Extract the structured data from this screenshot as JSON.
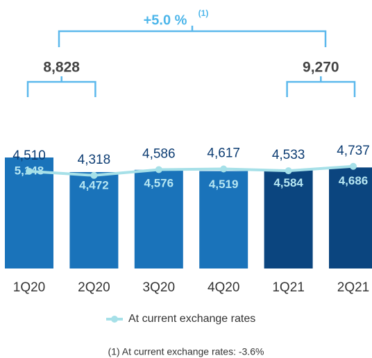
{
  "chart_data": {
    "type": "bar",
    "categories": [
      "1Q20",
      "2Q20",
      "3Q20",
      "4Q20",
      "1Q21",
      "2Q21"
    ],
    "series": [
      {
        "values": [
          5148,
          4472,
          4576,
          4519,
          4584,
          4686
        ],
        "value_labels": [
          "5,148",
          "4,472",
          "4,576",
          "4,519",
          "4,584",
          "4,686"
        ],
        "colors": [
          "#1a73ba",
          "#1a73ba",
          "#1a73ba",
          "#1a73ba",
          "#0b457f",
          "#0b457f"
        ]
      },
      {
        "name": "At current exchange rates",
        "type": "line",
        "color": "#a6e0e8",
        "values": [
          4510,
          4318,
          4586,
          4617,
          4533,
          4737
        ],
        "value_labels": [
          "4,510",
          "4,318",
          "4,586",
          "4,617",
          "4,533",
          "4,737"
        ]
      }
    ],
    "annotations": {
      "growth": "+5.0 %",
      "growth_note": "(1)",
      "brackets": [
        "8,828",
        "9,270"
      ]
    },
    "footnote": "(1) At current exchange rates: -3.6%"
  }
}
